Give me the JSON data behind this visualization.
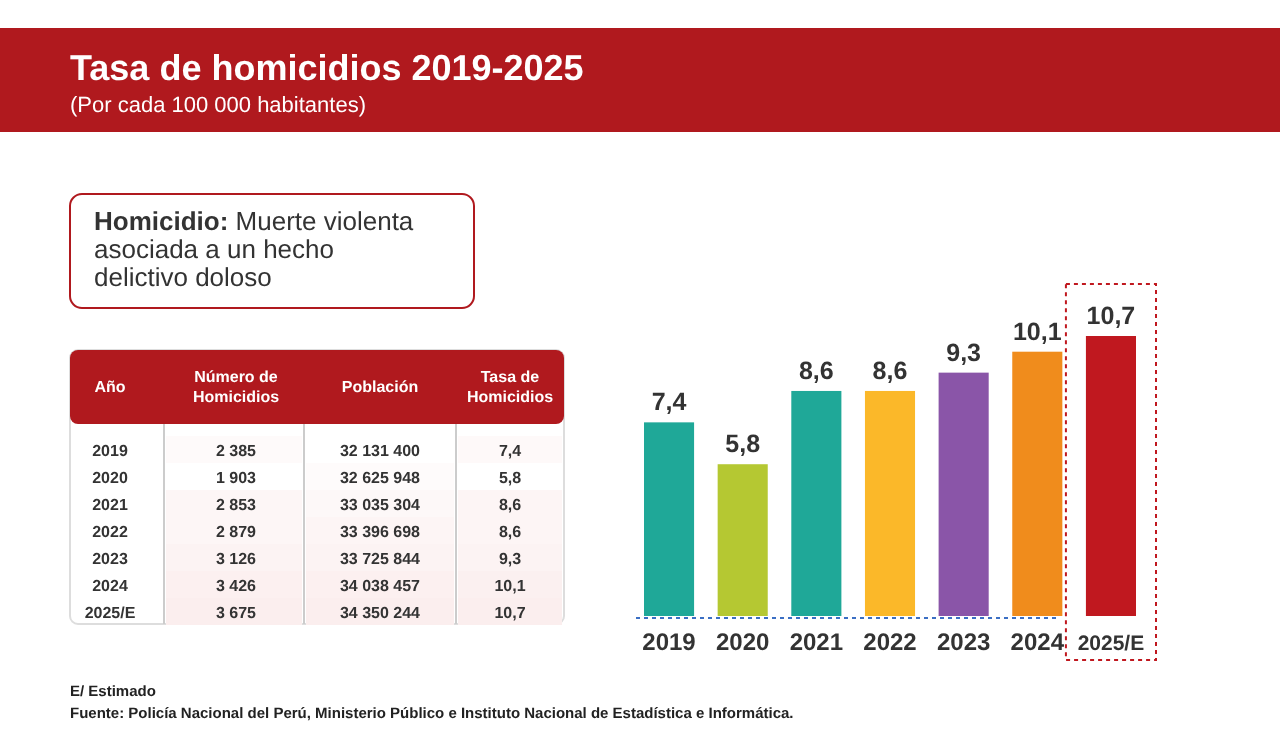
{
  "chart_data": [
    {
      "type": "bar",
      "categories": [
        "2019",
        "2020",
        "2021",
        "2022",
        "2023",
        "2024",
        "2025/E"
      ],
      "values": [
        7.4,
        5.8,
        8.6,
        8.6,
        9.3,
        10.1,
        10.7
      ],
      "value_labels": [
        "7,4",
        "5,8",
        "8,6",
        "8,6",
        "9,3",
        "10,1",
        "10,7"
      ],
      "colors": [
        "#1fa898",
        "#b5c832",
        "#1fa898",
        "#fbb829",
        "#8a55a8",
        "#f08c1c",
        "#c0181f"
      ],
      "annotations": [
        "E/ Estimado",
        "Fuente: Policía Nacional del Perú, Ministerio Público e Instituto Nacional de Estadística e Informática."
      ]
    },
    {
      "type": "other",
      "title": "Tasa de homicidios 2019-2025",
      "subtitle": "(Por cada 100 000 habitantes)",
      "annotations": [
        "Homicidio:",
        "Muerte violenta asociada a un hecho delictivo doloso"
      ]
    },
    {
      "type": "heatmap",
      "ylabel": "Año",
      "categories": [
        "Número de Homicidios",
        "Población",
        "Tasa de Homicidios"
      ],
      "y_categories": [
        "2019",
        "2020",
        "2021",
        "2022",
        "2023",
        "2024",
        "2025/E"
      ],
      "cells": [
        [
          2385,
          32131400,
          7.4
        ],
        [
          1903,
          32625948,
          5.8
        ],
        [
          2853,
          33035304,
          8.6
        ],
        [
          2879,
          33396698,
          8.6
        ],
        [
          3126,
          33725844,
          9.3
        ],
        [
          3426,
          34038457,
          10.1
        ],
        [
          3675,
          34350244,
          10.7
        ]
      ],
      "cell_labels": [
        [
          "2 385",
          "32 131 400",
          "7,4"
        ],
        [
          "1 903",
          "32 625 948",
          "5,8"
        ],
        [
          "2 853",
          "33 035 304",
          "8,6"
        ],
        [
          "2 879",
          "33 396 698",
          "8,6"
        ],
        [
          "3 126",
          "33 725 844",
          "9,3"
        ],
        [
          "3 426",
          "34 038 457",
          "10,1"
        ],
        [
          "3 675",
          "34 350 244",
          "10,7"
        ]
      ]
    }
  ]
}
